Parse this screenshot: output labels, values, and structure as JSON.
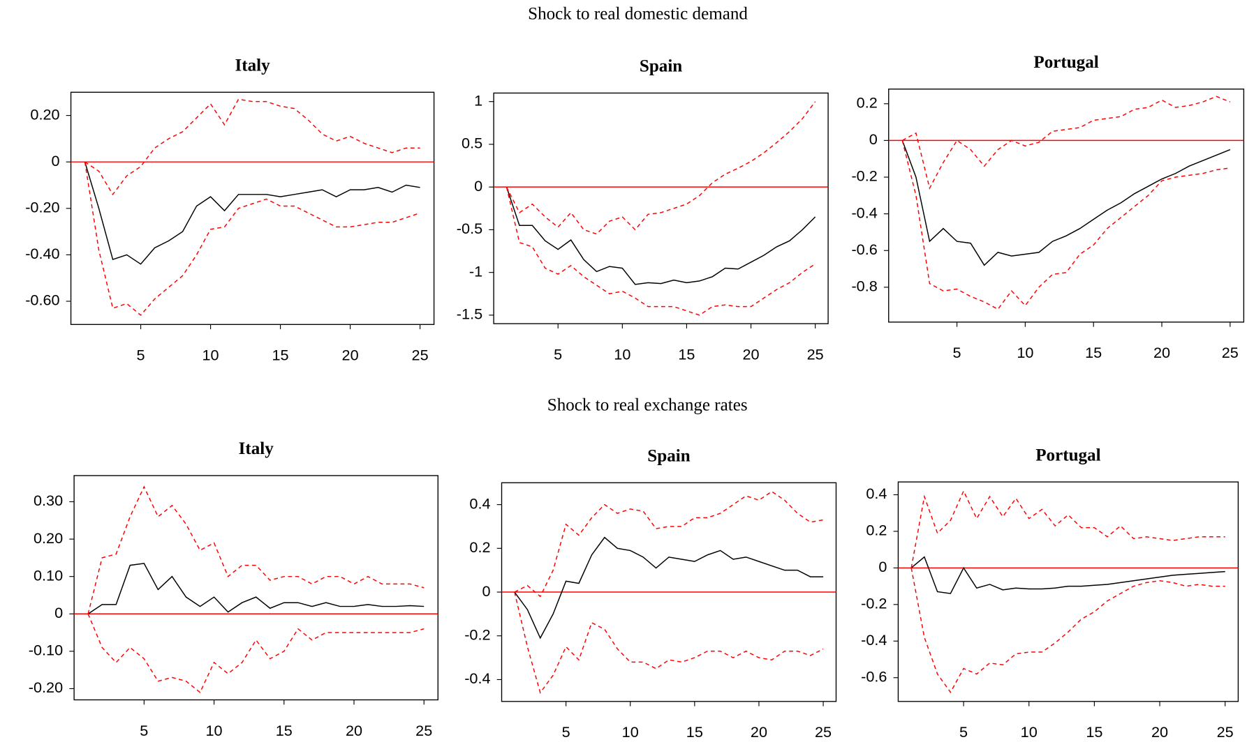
{
  "section_titles": [
    "Shock to real domestic demand",
    "Shock to real exchange rates"
  ],
  "chart_data": [
    {
      "type": "line",
      "title": "Italy",
      "x": [
        1,
        2,
        3,
        4,
        5,
        6,
        7,
        8,
        9,
        10,
        11,
        12,
        13,
        14,
        15,
        16,
        17,
        18,
        19,
        20,
        21,
        22,
        23,
        24,
        25
      ],
      "xlim": [
        0,
        26
      ],
      "xticks": [
        5,
        10,
        15,
        20,
        25
      ],
      "ylim": [
        -0.7,
        0.3
      ],
      "yticks": [
        {
          "value": 0.2,
          "label": "0.20"
        },
        0,
        {
          "value": -0.2,
          "label": "-0.20"
        },
        {
          "value": -0.4,
          "label": "-0.40"
        },
        {
          "value": -0.6,
          "label": "-0.60"
        }
      ],
      "hline": {
        "value": 0,
        "color": "#ff0000"
      },
      "series": [
        {
          "color": "#000000",
          "line_style": "solid",
          "values": [
            0,
            -0.2,
            -0.42,
            -0.4,
            -0.44,
            -0.37,
            -0.34,
            -0.3,
            -0.19,
            -0.15,
            -0.21,
            -0.14,
            -0.14,
            -0.14,
            -0.15,
            -0.14,
            -0.13,
            -0.12,
            -0.15,
            -0.12,
            -0.12,
            -0.11,
            -0.13,
            -0.1,
            -0.11
          ]
        },
        {
          "color": "#ff0000",
          "line_style": "dashed",
          "values": [
            0,
            -0.04,
            -0.14,
            -0.06,
            -0.02,
            0.06,
            0.1,
            0.13,
            0.19,
            0.25,
            0.16,
            0.27,
            0.26,
            0.26,
            0.24,
            0.23,
            0.18,
            0.12,
            0.09,
            0.11,
            0.08,
            0.06,
            0.04,
            0.06,
            0.06
          ]
        },
        {
          "color": "#ff0000",
          "line_style": "dashed",
          "values": [
            0,
            -0.38,
            -0.63,
            -0.61,
            -0.66,
            -0.59,
            -0.54,
            -0.49,
            -0.4,
            -0.29,
            -0.28,
            -0.2,
            -0.18,
            -0.16,
            -0.19,
            -0.19,
            -0.22,
            -0.25,
            -0.28,
            -0.28,
            -0.27,
            -0.26,
            -0.26,
            -0.24,
            -0.22
          ]
        }
      ]
    },
    {
      "type": "line",
      "title": "Spain",
      "x": [
        1,
        2,
        3,
        4,
        5,
        6,
        7,
        8,
        9,
        10,
        11,
        12,
        13,
        14,
        15,
        16,
        17,
        18,
        19,
        20,
        21,
        22,
        23,
        24,
        25
      ],
      "xlim": [
        0,
        26
      ],
      "xticks": [
        5,
        10,
        15,
        20,
        25
      ],
      "ylim": [
        -1.6,
        1.1
      ],
      "yticks": [
        1,
        0.5,
        0,
        -0.5,
        -1,
        -1.5
      ],
      "hline": {
        "value": 0,
        "color": "#ff0000"
      },
      "series": [
        {
          "color": "#000000",
          "line_style": "solid",
          "values": [
            0,
            -0.45,
            -0.45,
            -0.63,
            -0.73,
            -0.62,
            -0.85,
            -0.99,
            -0.93,
            -0.95,
            -1.14,
            -1.12,
            -1.13,
            -1.09,
            -1.12,
            -1.1,
            -1.05,
            -0.95,
            -0.96,
            -0.88,
            -0.8,
            -0.7,
            -0.63,
            -0.5,
            -0.35
          ]
        },
        {
          "color": "#ff0000",
          "line_style": "dashed",
          "values": [
            0,
            -0.3,
            -0.2,
            -0.35,
            -0.47,
            -0.3,
            -0.5,
            -0.55,
            -0.4,
            -0.35,
            -0.5,
            -0.32,
            -0.3,
            -0.25,
            -0.2,
            -0.1,
            0.05,
            0.15,
            0.22,
            0.3,
            0.4,
            0.52,
            0.65,
            0.8,
            1.0
          ]
        },
        {
          "color": "#ff0000",
          "line_style": "dashed",
          "values": [
            0,
            -0.65,
            -0.7,
            -0.95,
            -1.02,
            -0.92,
            -1.05,
            -1.15,
            -1.25,
            -1.22,
            -1.3,
            -1.4,
            -1.4,
            -1.4,
            -1.45,
            -1.5,
            -1.4,
            -1.38,
            -1.4,
            -1.4,
            -1.3,
            -1.2,
            -1.12,
            -1.0,
            -0.9
          ]
        }
      ]
    },
    {
      "type": "line",
      "title": "Portugal",
      "x": [
        1,
        2,
        3,
        4,
        5,
        6,
        7,
        8,
        9,
        10,
        11,
        12,
        13,
        14,
        15,
        16,
        17,
        18,
        19,
        20,
        21,
        22,
        23,
        24,
        25
      ],
      "xlim": [
        0,
        26
      ],
      "xticks": [
        5,
        10,
        15,
        20,
        25
      ],
      "ylim": [
        -0.99,
        0.28
      ],
      "yticks": [
        0.2,
        0,
        -0.2,
        -0.4,
        -0.6,
        -0.8
      ],
      "hline": {
        "value": 0,
        "color": "#ff0000"
      },
      "series": [
        {
          "color": "#000000",
          "line_style": "solid",
          "values": [
            0,
            -0.2,
            -0.55,
            -0.48,
            -0.55,
            -0.56,
            -0.68,
            -0.61,
            -0.63,
            -0.62,
            -0.61,
            -0.55,
            -0.52,
            -0.48,
            -0.43,
            -0.38,
            -0.34,
            -0.29,
            -0.25,
            -0.21,
            -0.18,
            -0.14,
            -0.11,
            -0.08,
            -0.05
          ]
        },
        {
          "color": "#ff0000",
          "line_style": "dashed",
          "values": [
            0,
            0.04,
            -0.26,
            -0.12,
            0.0,
            -0.05,
            -0.14,
            -0.05,
            0.0,
            -0.03,
            -0.01,
            0.05,
            0.06,
            0.07,
            0.11,
            0.12,
            0.13,
            0.17,
            0.18,
            0.22,
            0.18,
            0.19,
            0.21,
            0.24,
            0.21
          ]
        },
        {
          "color": "#ff0000",
          "line_style": "dashed",
          "values": [
            0,
            -0.3,
            -0.78,
            -0.82,
            -0.81,
            -0.85,
            -0.88,
            -0.92,
            -0.82,
            -0.9,
            -0.8,
            -0.73,
            -0.72,
            -0.62,
            -0.57,
            -0.48,
            -0.42,
            -0.36,
            -0.3,
            -0.22,
            -0.2,
            -0.19,
            -0.18,
            -0.16,
            -0.15
          ]
        }
      ]
    },
    {
      "type": "line",
      "title": "Italy",
      "x": [
        1,
        2,
        3,
        4,
        5,
        6,
        7,
        8,
        9,
        10,
        11,
        12,
        13,
        14,
        15,
        16,
        17,
        18,
        19,
        20,
        21,
        22,
        23,
        24,
        25
      ],
      "xlim": [
        0,
        26
      ],
      "xticks": [
        5,
        10,
        15,
        20,
        25
      ],
      "ylim": [
        -0.23,
        0.37
      ],
      "yticks": [
        {
          "value": 0.3,
          "label": "0.30"
        },
        {
          "value": 0.2,
          "label": "0.20"
        },
        {
          "value": 0.1,
          "label": "0.10"
        },
        0,
        {
          "value": -0.1,
          "label": "-0.10"
        },
        {
          "value": -0.2,
          "label": "-0.20"
        }
      ],
      "hline": {
        "value": 0,
        "color": "#ff0000"
      },
      "series": [
        {
          "color": "#000000",
          "line_style": "solid",
          "values": [
            0,
            0.025,
            0.025,
            0.13,
            0.135,
            0.065,
            0.1,
            0.045,
            0.02,
            0.045,
            0.005,
            0.03,
            0.045,
            0.015,
            0.03,
            0.03,
            0.02,
            0.03,
            0.02,
            0.02,
            0.025,
            0.02,
            0.02,
            0.022,
            0.02
          ]
        },
        {
          "color": "#ff0000",
          "line_style": "dashed",
          "values": [
            0,
            0.15,
            0.16,
            0.26,
            0.34,
            0.26,
            0.29,
            0.24,
            0.17,
            0.19,
            0.1,
            0.13,
            0.13,
            0.09,
            0.1,
            0.1,
            0.08,
            0.1,
            0.1,
            0.08,
            0.1,
            0.08,
            0.08,
            0.08,
            0.07
          ]
        },
        {
          "color": "#ff0000",
          "line_style": "dashed",
          "values": [
            0,
            -0.09,
            -0.13,
            -0.09,
            -0.12,
            -0.18,
            -0.17,
            -0.18,
            -0.21,
            -0.13,
            -0.16,
            -0.13,
            -0.07,
            -0.12,
            -0.1,
            -0.04,
            -0.07,
            -0.05,
            -0.05,
            -0.05,
            -0.05,
            -0.05,
            -0.05,
            -0.05,
            -0.04
          ]
        }
      ]
    },
    {
      "type": "line",
      "title": "Spain",
      "x": [
        1,
        2,
        3,
        4,
        5,
        6,
        7,
        8,
        9,
        10,
        11,
        12,
        13,
        14,
        15,
        16,
        17,
        18,
        19,
        20,
        21,
        22,
        23,
        24,
        25
      ],
      "xlim": [
        0,
        26
      ],
      "xticks": [
        5,
        10,
        15,
        20,
        25
      ],
      "ylim": [
        -0.5,
        0.5
      ],
      "yticks": [
        0.4,
        0.2,
        0,
        -0.2,
        -0.4
      ],
      "hline": {
        "value": 0,
        "color": "#ff0000"
      },
      "series": [
        {
          "color": "#000000",
          "line_style": "solid",
          "values": [
            0,
            -0.08,
            -0.21,
            -0.1,
            0.05,
            0.04,
            0.17,
            0.25,
            0.2,
            0.19,
            0.16,
            0.11,
            0.16,
            0.15,
            0.14,
            0.17,
            0.19,
            0.15,
            0.16,
            0.14,
            0.12,
            0.1,
            0.1,
            0.07,
            0.07
          ]
        },
        {
          "color": "#ff0000",
          "line_style": "dashed",
          "values": [
            0,
            0.03,
            -0.02,
            0.1,
            0.31,
            0.26,
            0.34,
            0.4,
            0.36,
            0.38,
            0.37,
            0.29,
            0.3,
            0.3,
            0.34,
            0.34,
            0.36,
            0.4,
            0.44,
            0.42,
            0.46,
            0.42,
            0.36,
            0.32,
            0.33
          ]
        },
        {
          "color": "#ff0000",
          "line_style": "dashed",
          "values": [
            0,
            -0.25,
            -0.46,
            -0.38,
            -0.25,
            -0.31,
            -0.14,
            -0.17,
            -0.26,
            -0.32,
            -0.32,
            -0.35,
            -0.31,
            -0.32,
            -0.3,
            -0.27,
            -0.27,
            -0.3,
            -0.27,
            -0.3,
            -0.31,
            -0.27,
            -0.27,
            -0.29,
            -0.26
          ]
        }
      ]
    },
    {
      "type": "line",
      "title": "Portugal",
      "x": [
        1,
        2,
        3,
        4,
        5,
        6,
        7,
        8,
        9,
        10,
        11,
        12,
        13,
        14,
        15,
        16,
        17,
        18,
        19,
        20,
        21,
        22,
        23,
        24,
        25
      ],
      "xlim": [
        0,
        26
      ],
      "xticks": [
        5,
        10,
        15,
        20,
        25
      ],
      "ylim": [
        -0.73,
        0.47
      ],
      "yticks": [
        0.4,
        0.2,
        0,
        -0.2,
        -0.4,
        -0.6
      ],
      "hline": {
        "value": 0,
        "color": "#ff0000"
      },
      "series": [
        {
          "color": "#000000",
          "line_style": "solid",
          "values": [
            0,
            0.06,
            -0.13,
            -0.14,
            0.0,
            -0.11,
            -0.09,
            -0.12,
            -0.11,
            -0.115,
            -0.115,
            -0.11,
            -0.1,
            -0.1,
            -0.095,
            -0.09,
            -0.08,
            -0.07,
            -0.06,
            -0.05,
            -0.04,
            -0.035,
            -0.03,
            -0.025,
            -0.02
          ]
        },
        {
          "color": "#ff0000",
          "line_style": "dashed",
          "values": [
            0,
            0.39,
            0.19,
            0.26,
            0.42,
            0.27,
            0.39,
            0.28,
            0.38,
            0.27,
            0.32,
            0.23,
            0.29,
            0.22,
            0.22,
            0.17,
            0.23,
            0.16,
            0.17,
            0.16,
            0.15,
            0.16,
            0.17,
            0.17,
            0.17
          ]
        },
        {
          "color": "#ff0000",
          "line_style": "dashed",
          "values": [
            0,
            -0.38,
            -0.58,
            -0.68,
            -0.55,
            -0.58,
            -0.52,
            -0.53,
            -0.47,
            -0.46,
            -0.46,
            -0.41,
            -0.35,
            -0.28,
            -0.24,
            -0.18,
            -0.14,
            -0.1,
            -0.08,
            -0.07,
            -0.08,
            -0.1,
            -0.09,
            -0.1,
            -0.1
          ]
        }
      ]
    }
  ]
}
